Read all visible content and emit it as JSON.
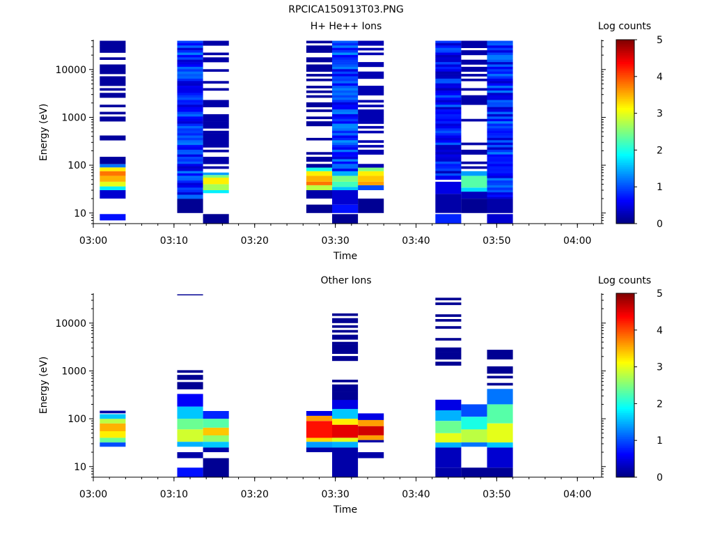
{
  "figure_title": "RPCICA150913T03.PNG",
  "colors": {
    "colormap": [
      "#00007f",
      "#0000ff",
      "#007fff",
      "#00ffff",
      "#7fff7f",
      "#ffff00",
      "#ff7f00",
      "#ff0000",
      "#7f0000"
    ]
  },
  "chart_data": [
    {
      "type": "heatmap",
      "title": "H+ He++ Ions",
      "xlabel": "Time",
      "ylabel": "Energy (eV)",
      "x_ticks": [
        "03:00",
        "03:10",
        "03:20",
        "03:30",
        "03:40",
        "03:50",
        "04:00"
      ],
      "xlim_minutes": [
        0,
        63
      ],
      "y_scale": "log",
      "y_ticks": [
        "10",
        "100",
        "1000",
        "10000"
      ],
      "ylim": [
        6,
        42000
      ],
      "colorbar": {
        "label": "Log counts",
        "range": [
          0,
          5
        ],
        "ticks": [
          "0",
          "1",
          "2",
          "3",
          "4",
          "5"
        ]
      },
      "columns": [
        {
          "x0": 0.8,
          "x1": 4.0,
          "bands": [
            {
              "e0": 7,
              "e1": 9.5,
              "v": 0.7
            },
            {
              "e0": 20,
              "e1": 30,
              "v": 0.4
            },
            {
              "e0": 30,
              "e1": 36,
              "v": 1.8
            },
            {
              "e0": 36,
              "e1": 45,
              "v": 3.0
            },
            {
              "e0": 45,
              "e1": 60,
              "v": 3.5
            },
            {
              "e0": 60,
              "e1": 75,
              "v": 3.8
            },
            {
              "e0": 75,
              "e1": 90,
              "v": 3.2
            },
            {
              "e0": 90,
              "e1": 105,
              "v": 1.2
            },
            {
              "e0": 105,
              "e1": 40000,
              "v": 0.15,
              "gaps": true
            }
          ]
        },
        {
          "x0": 10.4,
          "x1": 13.6,
          "bands": [
            {
              "e0": 10,
              "e1": 20,
              "v": 0.1
            },
            {
              "e0": 20,
              "e1": 40000,
              "v": 0.8,
              "var": true
            }
          ]
        },
        {
          "x0": 13.6,
          "x1": 16.8,
          "bands": [
            {
              "e0": 6,
              "e1": 9.5,
              "v": 0.1
            },
            {
              "e0": 26,
              "e1": 30,
              "v": 1.8
            },
            {
              "e0": 30,
              "e1": 40,
              "v": 2.7
            },
            {
              "e0": 40,
              "e1": 55,
              "v": 3.2
            },
            {
              "e0": 55,
              "e1": 62,
              "v": 2.5
            },
            {
              "e0": 62,
              "e1": 70,
              "v": 1.4
            },
            {
              "e0": 70,
              "e1": 40000,
              "v": 0.2,
              "gaps": true
            }
          ]
        },
        {
          "x0": 26.4,
          "x1": 29.6,
          "bands": [
            {
              "e0": 10,
              "e1": 15,
              "v": 0.1
            },
            {
              "e0": 20,
              "e1": 30,
              "v": 0.2
            },
            {
              "e0": 30,
              "e1": 38,
              "v": 2.8
            },
            {
              "e0": 38,
              "e1": 45,
              "v": 3.8
            },
            {
              "e0": 45,
              "e1": 60,
              "v": 3.5
            },
            {
              "e0": 60,
              "e1": 75,
              "v": 3.2
            },
            {
              "e0": 75,
              "e1": 90,
              "v": 2.0
            },
            {
              "e0": 90,
              "e1": 40000,
              "v": 0.15,
              "gaps": true
            }
          ]
        },
        {
          "x0": 29.6,
          "x1": 32.8,
          "bands": [
            {
              "e0": 6,
              "e1": 9.5,
              "v": 0.1
            },
            {
              "e0": 10,
              "e1": 15,
              "v": 0.7
            },
            {
              "e0": 15,
              "e1": 30,
              "v": 0.4
            },
            {
              "e0": 30,
              "e1": 35,
              "v": 1.6
            },
            {
              "e0": 35,
              "e1": 45,
              "v": 2.2
            },
            {
              "e0": 45,
              "e1": 60,
              "v": 2.5
            },
            {
              "e0": 60,
              "e1": 75,
              "v": 1.5
            },
            {
              "e0": 75,
              "e1": 40000,
              "v": 0.9,
              "var": true
            }
          ]
        },
        {
          "x0": 32.8,
          "x1": 36.0,
          "bands": [
            {
              "e0": 10,
              "e1": 20,
              "v": 0.1
            },
            {
              "e0": 30,
              "e1": 38,
              "v": 1.0
            },
            {
              "e0": 38,
              "e1": 45,
              "v": 3.6
            },
            {
              "e0": 45,
              "e1": 60,
              "v": 3.4
            },
            {
              "e0": 60,
              "e1": 75,
              "v": 3.2
            },
            {
              "e0": 75,
              "e1": 90,
              "v": 2.5
            },
            {
              "e0": 90,
              "e1": 40000,
              "v": 0.25,
              "gaps": true
            }
          ]
        },
        {
          "x0": 42.4,
          "x1": 45.6,
          "bands": [
            {
              "e0": 6,
              "e1": 9.5,
              "v": 0.8
            },
            {
              "e0": 10,
              "e1": 25,
              "v": 0.2
            },
            {
              "e0": 25,
              "e1": 45,
              "v": 0.5
            },
            {
              "e0": 50,
              "e1": 40000,
              "v": 0.7,
              "var": true
            }
          ]
        },
        {
          "x0": 45.6,
          "x1": 48.8,
          "bands": [
            {
              "e0": 10,
              "e1": 20,
              "v": 0.1
            },
            {
              "e0": 20,
              "e1": 28,
              "v": 0.3
            },
            {
              "e0": 28,
              "e1": 34,
              "v": 1.7
            },
            {
              "e0": 34,
              "e1": 60,
              "v": 2.3
            },
            {
              "e0": 60,
              "e1": 75,
              "v": 1.4
            },
            {
              "e0": 75,
              "e1": 40000,
              "v": 0.2,
              "gaps": true
            }
          ]
        },
        {
          "x0": 48.8,
          "x1": 52.0,
          "bands": [
            {
              "e0": 6,
              "e1": 9.5,
              "v": 0.4
            },
            {
              "e0": 10,
              "e1": 20,
              "v": 0.2
            },
            {
              "e0": 20,
              "e1": 40000,
              "v": 0.8,
              "var": true
            }
          ]
        }
      ]
    },
    {
      "type": "heatmap",
      "title": "Other Ions",
      "xlabel": "Time",
      "ylabel": "Energy (eV)",
      "x_ticks": [
        "03:00",
        "03:10",
        "03:20",
        "03:30",
        "03:40",
        "03:50",
        "04:00"
      ],
      "xlim_minutes": [
        0,
        63
      ],
      "y_scale": "log",
      "y_ticks": [
        "10",
        "100",
        "1000",
        "10000"
      ],
      "ylim": [
        6,
        42000
      ],
      "colorbar": {
        "label": "Log counts",
        "range": [
          0,
          5
        ],
        "ticks": [
          "0",
          "1",
          "2",
          "3",
          "4",
          "5"
        ]
      },
      "columns": [
        {
          "x0": 0.8,
          "x1": 4.0,
          "bands": [
            {
              "e0": 26,
              "e1": 32,
              "v": 1.0
            },
            {
              "e0": 32,
              "e1": 40,
              "v": 2.4
            },
            {
              "e0": 40,
              "e1": 55,
              "v": 3.2
            },
            {
              "e0": 55,
              "e1": 80,
              "v": 3.5
            },
            {
              "e0": 80,
              "e1": 100,
              "v": 2.8
            },
            {
              "e0": 100,
              "e1": 125,
              "v": 1.6
            },
            {
              "e0": 130,
              "e1": 165,
              "v": 0.2,
              "gaps": true
            }
          ]
        },
        {
          "x0": 10.4,
          "x1": 13.6,
          "bands": [
            {
              "e0": 6,
              "e1": 9.5,
              "v": 0.7
            },
            {
              "e0": 15,
              "e1": 20,
              "v": 0.2
            },
            {
              "e0": 26,
              "e1": 33,
              "v": 1.5
            },
            {
              "e0": 33,
              "e1": 60,
              "v": 2.9
            },
            {
              "e0": 60,
              "e1": 100,
              "v": 2.4
            },
            {
              "e0": 100,
              "e1": 180,
              "v": 1.6
            },
            {
              "e0": 180,
              "e1": 330,
              "v": 0.6
            },
            {
              "e0": 380,
              "e1": 1300,
              "v": 0.1,
              "gaps": true
            },
            {
              "e0": 38000,
              "e1": 40000,
              "v": 0.1
            }
          ]
        },
        {
          "x0": 13.6,
          "x1": 16.8,
          "bands": [
            {
              "e0": 6,
              "e1": 15,
              "v": 0.1
            },
            {
              "e0": 20,
              "e1": 25,
              "v": 0.2
            },
            {
              "e0": 25,
              "e1": 33,
              "v": 1.6
            },
            {
              "e0": 33,
              "e1": 45,
              "v": 2.6
            },
            {
              "e0": 45,
              "e1": 65,
              "v": 3.4
            },
            {
              "e0": 65,
              "e1": 100,
              "v": 2.3
            },
            {
              "e0": 100,
              "e1": 145,
              "v": 0.8
            }
          ]
        },
        {
          "x0": 26.4,
          "x1": 29.6,
          "bands": [
            {
              "e0": 20,
              "e1": 25,
              "v": 0.2
            },
            {
              "e0": 25,
              "e1": 33,
              "v": 1.4
            },
            {
              "e0": 33,
              "e1": 40,
              "v": 3.3
            },
            {
              "e0": 40,
              "e1": 90,
              "v": 4.3
            },
            {
              "e0": 90,
              "e1": 115,
              "v": 3.6
            },
            {
              "e0": 115,
              "e1": 145,
              "v": 0.5
            }
          ]
        },
        {
          "x0": 29.6,
          "x1": 32.8,
          "bands": [
            {
              "e0": 6,
              "e1": 25,
              "v": 0.2
            },
            {
              "e0": 25,
              "e1": 33,
              "v": 1.5
            },
            {
              "e0": 33,
              "e1": 40,
              "v": 3.0
            },
            {
              "e0": 40,
              "e1": 75,
              "v": 4.5
            },
            {
              "e0": 75,
              "e1": 100,
              "v": 3.2
            },
            {
              "e0": 100,
              "e1": 160,
              "v": 1.6
            },
            {
              "e0": 160,
              "e1": 250,
              "v": 0.5
            },
            {
              "e0": 250,
              "e1": 20000,
              "v": 0.1,
              "gaps": true
            }
          ]
        },
        {
          "x0": 32.8,
          "x1": 36.0,
          "bands": [
            {
              "e0": 15,
              "e1": 20,
              "v": 0.2
            },
            {
              "e0": 32,
              "e1": 36,
              "v": 0.2
            },
            {
              "e0": 36,
              "e1": 45,
              "v": 3.6
            },
            {
              "e0": 45,
              "e1": 70,
              "v": 4.6
            },
            {
              "e0": 70,
              "e1": 95,
              "v": 3.6
            },
            {
              "e0": 95,
              "e1": 145,
              "v": 0.5,
              "gaps": true
            }
          ]
        },
        {
          "x0": 42.4,
          "x1": 45.6,
          "bands": [
            {
              "e0": 6,
              "e1": 9.5,
              "v": 0.2
            },
            {
              "e0": 9.5,
              "e1": 25,
              "v": 0.3
            },
            {
              "e0": 25,
              "e1": 32,
              "v": 1.5
            },
            {
              "e0": 32,
              "e1": 50,
              "v": 3.0
            },
            {
              "e0": 50,
              "e1": 90,
              "v": 2.4
            },
            {
              "e0": 90,
              "e1": 150,
              "v": 1.5
            },
            {
              "e0": 150,
              "e1": 250,
              "v": 0.5
            },
            {
              "e0": 1300,
              "e1": 38000,
              "v": 0.1,
              "gaps": true
            }
          ]
        },
        {
          "x0": 45.6,
          "x1": 48.8,
          "bands": [
            {
              "e0": 6,
              "e1": 9.5,
              "v": 0.1
            },
            {
              "e0": 26,
              "e1": 32,
              "v": 1.2
            },
            {
              "e0": 32,
              "e1": 60,
              "v": 2.8
            },
            {
              "e0": 60,
              "e1": 110,
              "v": 2.0
            },
            {
              "e0": 110,
              "e1": 200,
              "v": 1.0
            },
            {
              "e0": 200,
              "e1": 250,
              "v": 0.2,
              "gaps": true
            }
          ]
        },
        {
          "x0": 48.8,
          "x1": 52.0,
          "bands": [
            {
              "e0": 6,
              "e1": 9.5,
              "v": 0.1
            },
            {
              "e0": 9.5,
              "e1": 25,
              "v": 0.4
            },
            {
              "e0": 25,
              "e1": 32,
              "v": 1.6
            },
            {
              "e0": 32,
              "e1": 80,
              "v": 3.0
            },
            {
              "e0": 80,
              "e1": 200,
              "v": 2.3
            },
            {
              "e0": 200,
              "e1": 420,
              "v": 1.2
            },
            {
              "e0": 420,
              "e1": 3100,
              "v": 0.1,
              "gaps": true
            }
          ]
        }
      ]
    }
  ]
}
